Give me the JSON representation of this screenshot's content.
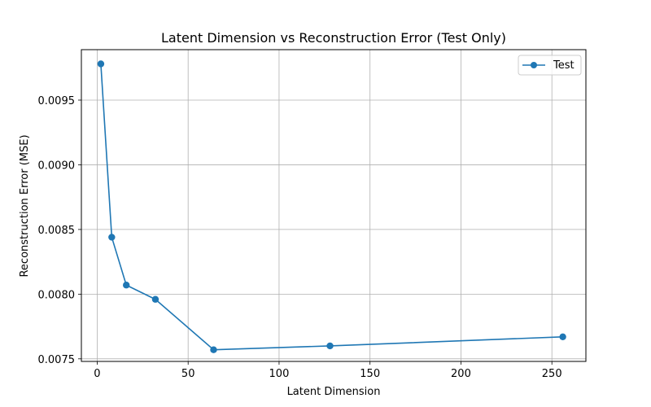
{
  "chart_data": {
    "type": "line",
    "title": "Latent Dimension vs Reconstruction Error (Test Only)",
    "xlabel": "Latent Dimension",
    "ylabel": "Reconstruction Error (MSE)",
    "xlim": [
      -8.7,
      268.7
    ],
    "ylim": [
      0.00748,
      0.00989
    ],
    "xticks": [
      0,
      50,
      100,
      150,
      200,
      250
    ],
    "xtick_labels": [
      "0",
      "50",
      "100",
      "150",
      "200",
      "250"
    ],
    "yticks": [
      0.0075,
      0.008,
      0.0085,
      0.009,
      0.0095
    ],
    "ytick_labels": [
      "0.0075",
      "0.0080",
      "0.0085",
      "0.0090",
      "0.0095"
    ],
    "grid": true,
    "legend_position": "top-right",
    "series": [
      {
        "name": "Test",
        "color": "#1f77b4",
        "marker": "circle",
        "x": [
          2,
          8,
          16,
          32,
          64,
          128,
          256
        ],
        "y": [
          0.00978,
          0.00844,
          0.00807,
          0.00796,
          0.00757,
          0.0076,
          0.00767
        ]
      }
    ]
  }
}
